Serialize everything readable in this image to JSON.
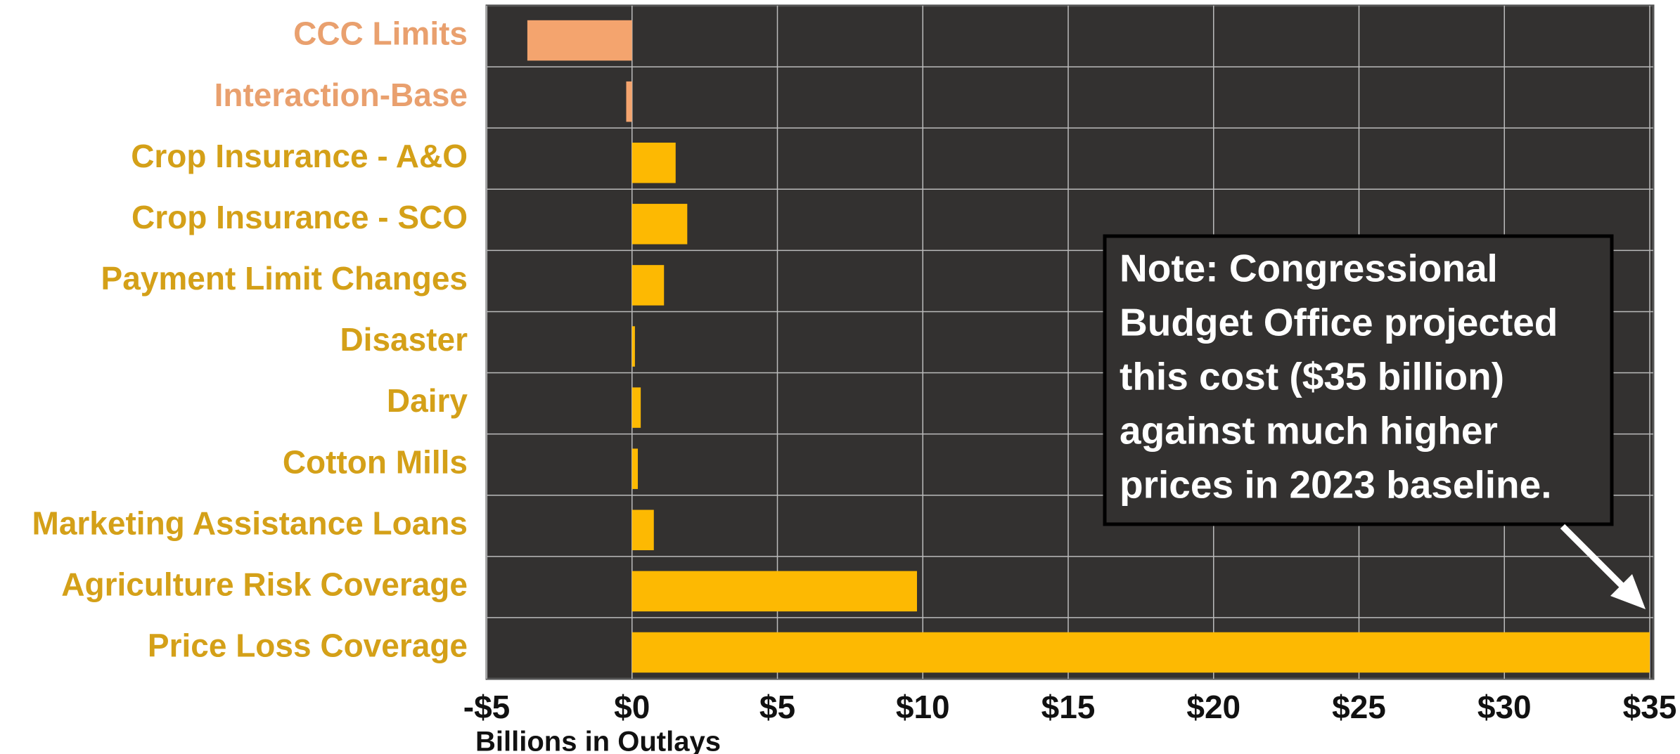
{
  "chart_data": {
    "type": "barh",
    "categories": [
      "CCC Limits",
      "Interaction-Base",
      "Crop Insurance - A&O",
      "Crop Insurance - SCO",
      "Payment Limit Changes",
      "Disaster",
      "Dairy",
      "Cotton Mills",
      "Marketing Assistance Loans",
      "Agriculture Risk Coverage",
      "Price Loss Coverage"
    ],
    "values": [
      -3.6,
      -0.2,
      1.5,
      1.9,
      1.1,
      0.1,
      0.3,
      0.2,
      0.75,
      9.8,
      35
    ],
    "colors": [
      "#f4a46e",
      "#f4a46e",
      "#fdb902",
      "#fdb902",
      "#fdb902",
      "#fdb902",
      "#fdb902",
      "#fdb902",
      "#fdb902",
      "#fdb902",
      "#fdb902"
    ],
    "label_colors": [
      "#e9a06e",
      "#e9a06e",
      "#d4a018",
      "#d4a018",
      "#d4a018",
      "#d4a018",
      "#d4a018",
      "#d4a018",
      "#d4a018",
      "#d4a018",
      "#d4a018"
    ],
    "xlabel": "Billions in Outlays",
    "xlim": [
      -5,
      35
    ],
    "xticks": [
      {
        "value": -5,
        "label": "-$5"
      },
      {
        "value": 0,
        "label": "$0"
      },
      {
        "value": 5,
        "label": "$5"
      },
      {
        "value": 10,
        "label": "$10"
      },
      {
        "value": 15,
        "label": "$15"
      },
      {
        "value": 20,
        "label": "$20"
      },
      {
        "value": 25,
        "label": "$25"
      },
      {
        "value": 30,
        "label": "$30"
      },
      {
        "value": 35,
        "label": "$35"
      }
    ],
    "grid": true,
    "annotation": [
      "Note: Congressional",
      "Budget Office projected",
      "this cost ($35 billion)",
      "against much higher",
      "prices in 2023 baseline."
    ]
  }
}
